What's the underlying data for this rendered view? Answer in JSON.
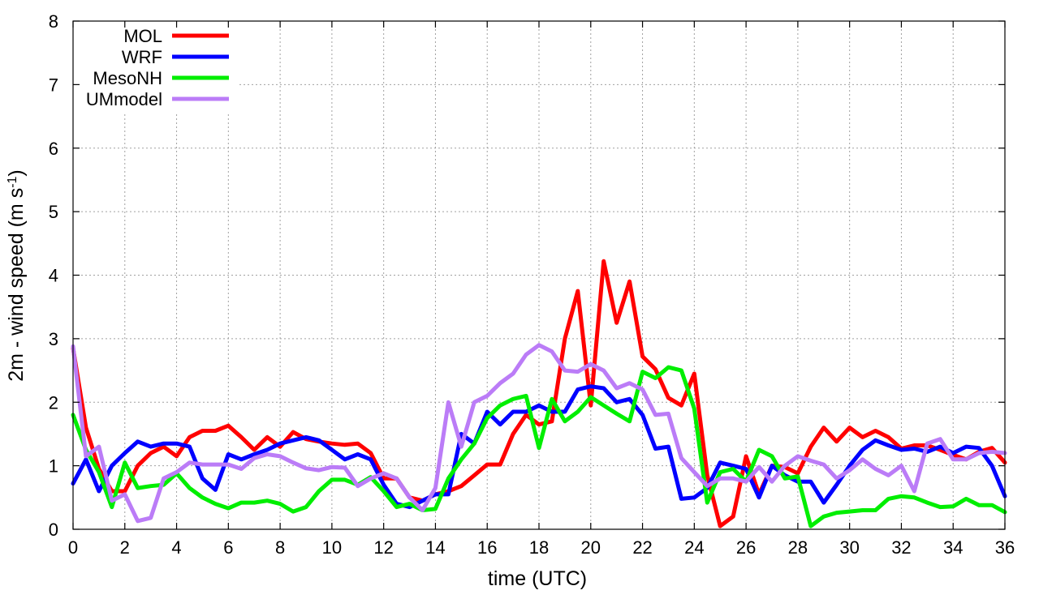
{
  "chart_data": {
    "type": "line",
    "xlabel": "time (UTC)",
    "ylabel_main": "2m - wind speed  (m s",
    "ylabel_sup": "-1",
    "ylabel_tail": ")",
    "xlim": [
      0,
      36
    ],
    "ylim": [
      0,
      8
    ],
    "xticks": [
      0,
      2,
      4,
      6,
      8,
      10,
      12,
      14,
      16,
      18,
      20,
      22,
      24,
      26,
      28,
      30,
      32,
      34,
      36
    ],
    "yticks": [
      0,
      1,
      2,
      3,
      4,
      5,
      6,
      7,
      8
    ],
    "grid": true,
    "legend_position": "top-left",
    "series": [
      {
        "name": "MOL",
        "color": "#ff0000",
        "x": [
          0,
          0.5,
          1,
          1.5,
          2,
          2.5,
          3,
          3.5,
          4,
          4.5,
          5,
          5.5,
          6,
          6.5,
          7,
          7.5,
          8,
          8.5,
          9,
          9.5,
          10,
          10.5,
          11,
          11.5,
          12,
          12.5,
          13,
          13.5,
          14,
          14.5,
          15,
          15.5,
          16,
          16.5,
          17,
          17.5,
          18,
          18.5,
          19,
          19.5,
          20,
          20.5,
          21,
          21.5,
          22,
          22.5,
          23,
          23.5,
          24,
          24.5,
          25,
          25.5,
          26,
          26.5,
          27,
          27.5,
          28,
          28.5,
          29,
          29.5,
          30,
          30.5,
          31,
          31.5,
          32,
          32.5,
          33,
          33.5,
          34,
          34.5,
          35,
          35.5,
          36
        ],
        "y": [
          2.85,
          1.6,
          0.95,
          0.6,
          0.6,
          1.0,
          1.2,
          1.3,
          1.15,
          1.45,
          1.55,
          1.55,
          1.63,
          1.45,
          1.25,
          1.45,
          1.3,
          1.53,
          1.42,
          1.38,
          1.35,
          1.33,
          1.35,
          1.2,
          0.8,
          0.8,
          0.5,
          0.45,
          0.55,
          0.6,
          0.68,
          0.85,
          1.02,
          1.02,
          1.5,
          1.8,
          1.65,
          1.7,
          3.0,
          3.75,
          1.95,
          4.22,
          3.25,
          3.9,
          2.72,
          2.52,
          2.07,
          1.95,
          2.45,
          0.85,
          0.05,
          0.2,
          1.15,
          0.55,
          1.0,
          0.98,
          0.88,
          1.3,
          1.6,
          1.38,
          1.6,
          1.45,
          1.55,
          1.45,
          1.27,
          1.32,
          1.32,
          1.25,
          1.17,
          1.1,
          1.22,
          1.28,
          1.05
        ]
      },
      {
        "name": "WRF",
        "color": "#0000ff",
        "x": [
          0,
          0.5,
          1,
          1.5,
          2,
          2.5,
          3,
          3.5,
          4,
          4.5,
          5,
          5.5,
          6,
          6.5,
          7,
          7.5,
          8,
          8.5,
          9,
          9.5,
          10,
          10.5,
          11,
          11.5,
          12,
          12.5,
          13,
          13.5,
          14,
          14.5,
          15,
          15.5,
          16,
          16.5,
          17,
          17.5,
          18,
          18.5,
          19,
          19.5,
          20,
          20.5,
          21,
          21.5,
          22,
          22.5,
          23,
          23.5,
          24,
          24.5,
          25,
          25.5,
          26,
          26.5,
          27,
          27.5,
          28,
          28.5,
          29,
          29.5,
          30,
          30.5,
          31,
          31.5,
          32,
          32.5,
          33,
          33.5,
          34,
          34.5,
          35,
          35.5,
          36
        ],
        "y": [
          0.72,
          1.1,
          0.6,
          1.0,
          1.2,
          1.38,
          1.3,
          1.35,
          1.35,
          1.3,
          0.8,
          0.62,
          1.18,
          1.1,
          1.18,
          1.25,
          1.35,
          1.4,
          1.45,
          1.4,
          1.25,
          1.1,
          1.18,
          1.1,
          0.7,
          0.4,
          0.35,
          0.45,
          0.55,
          0.55,
          1.5,
          1.35,
          1.85,
          1.65,
          1.85,
          1.85,
          1.95,
          1.85,
          1.85,
          2.2,
          2.25,
          2.22,
          2.0,
          2.05,
          1.8,
          1.27,
          1.3,
          0.48,
          0.5,
          0.65,
          1.05,
          1.0,
          0.95,
          0.5,
          1.0,
          0.85,
          0.75,
          0.75,
          0.42,
          0.7,
          1.0,
          1.25,
          1.4,
          1.32,
          1.25,
          1.27,
          1.22,
          1.3,
          1.2,
          1.3,
          1.28,
          1.0,
          0.52
        ]
      },
      {
        "name": "MesoNH",
        "color": "#00ee00",
        "x": [
          0,
          0.5,
          1,
          1.5,
          2,
          2.5,
          3,
          3.5,
          4,
          4.5,
          5,
          5.5,
          6,
          6.5,
          7,
          7.5,
          8,
          8.5,
          9,
          9.5,
          10,
          10.5,
          11,
          11.5,
          12,
          12.5,
          13,
          13.5,
          14,
          14.5,
          15,
          15.5,
          16,
          16.5,
          17,
          17.5,
          18,
          18.5,
          19,
          19.5,
          20,
          20.5,
          21,
          21.5,
          22,
          22.5,
          23,
          23.5,
          24,
          24.5,
          25,
          25.5,
          26,
          26.5,
          27,
          27.5,
          28,
          28.5,
          29,
          29.5,
          30,
          30.5,
          31,
          31.5,
          32,
          32.5,
          33,
          33.5,
          34,
          34.5,
          35,
          35.5,
          36
        ],
        "y": [
          1.8,
          1.25,
          0.9,
          0.35,
          1.05,
          0.65,
          0.68,
          0.7,
          0.88,
          0.65,
          0.5,
          0.4,
          0.33,
          0.42,
          0.42,
          0.45,
          0.4,
          0.28,
          0.35,
          0.6,
          0.78,
          0.78,
          0.7,
          0.82,
          0.6,
          0.35,
          0.4,
          0.3,
          0.32,
          0.8,
          1.1,
          1.35,
          1.75,
          1.95,
          2.05,
          2.1,
          1.28,
          2.05,
          1.7,
          1.85,
          2.08,
          1.95,
          1.82,
          1.7,
          2.48,
          2.38,
          2.55,
          2.5,
          1.9,
          0.42,
          0.9,
          0.95,
          0.75,
          1.25,
          1.15,
          0.8,
          0.83,
          0.05,
          0.2,
          0.26,
          0.28,
          0.3,
          0.3,
          0.48,
          0.52,
          0.5,
          0.42,
          0.35,
          0.36,
          0.48,
          0.38,
          0.38,
          0.27
        ]
      },
      {
        "name": "UMmodel",
        "color": "#bb7cf7",
        "x": [
          0,
          0.5,
          1,
          1.5,
          2,
          2.5,
          3,
          3.5,
          4,
          4.5,
          5,
          5.5,
          6,
          6.5,
          7,
          7.5,
          8,
          8.5,
          9,
          9.5,
          10,
          10.5,
          11,
          11.5,
          12,
          12.5,
          13,
          13.5,
          14,
          14.5,
          15,
          15.5,
          16,
          16.5,
          17,
          17.5,
          18,
          18.5,
          19,
          19.5,
          20,
          20.5,
          21,
          21.5,
          22,
          22.5,
          23,
          23.5,
          24,
          24.5,
          25,
          25.5,
          26,
          26.5,
          27,
          27.5,
          28,
          28.5,
          29,
          29.5,
          30,
          30.5,
          31,
          31.5,
          32,
          32.5,
          33,
          33.5,
          34,
          34.5,
          35,
          35.5,
          36
        ],
        "y": [
          2.88,
          1.15,
          1.3,
          0.45,
          0.55,
          0.13,
          0.18,
          0.8,
          0.9,
          1.05,
          1.02,
          1.02,
          1.02,
          0.95,
          1.12,
          1.18,
          1.15,
          1.05,
          0.96,
          0.93,
          0.98,
          0.97,
          0.68,
          0.8,
          0.88,
          0.8,
          0.5,
          0.3,
          0.65,
          2.0,
          1.3,
          2.0,
          2.1,
          2.3,
          2.45,
          2.75,
          2.9,
          2.8,
          2.5,
          2.48,
          2.6,
          2.5,
          2.22,
          2.3,
          2.2,
          1.8,
          1.82,
          1.12,
          0.9,
          0.68,
          0.8,
          0.8,
          0.75,
          0.98,
          0.75,
          1.0,
          1.15,
          1.08,
          1.02,
          0.8,
          0.93,
          1.1,
          0.95,
          0.85,
          1.0,
          0.6,
          1.35,
          1.42,
          1.1,
          1.1,
          1.2,
          1.22,
          1.2
        ]
      }
    ]
  }
}
